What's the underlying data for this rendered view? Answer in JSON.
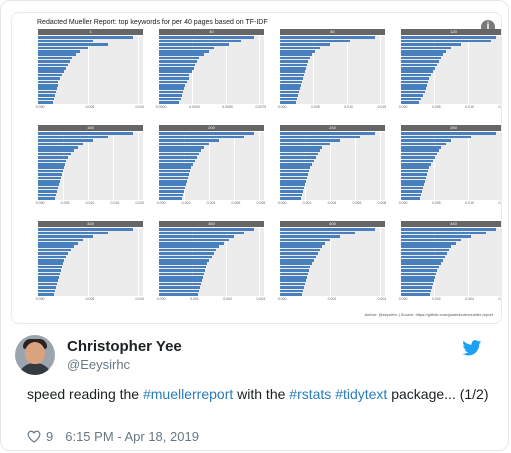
{
  "figure": {
    "title": "Redacted Mueller Report: top keywords for per 40 pages based on TF-IDF",
    "author_line": "Author: @eeysirhc | Source: https://github.com/gadenbuie/mueller-report",
    "info_icon": "info-icon",
    "panels": [
      {
        "strip": "1",
        "ticks": [
          "0.000",
          "0.005",
          "0.010"
        ],
        "values": [
          0.95,
          0.55,
          0.7,
          0.5,
          0.42,
          0.38,
          0.34,
          0.32,
          0.3,
          0.28,
          0.26,
          0.24,
          0.22,
          0.2,
          0.2,
          0.19,
          0.18,
          0.17,
          0.16,
          0.15
        ]
      },
      {
        "strip": "40",
        "ticks": [
          "0.0000",
          "0.0025",
          "0.0050",
          "0.0075"
        ],
        "values": [
          0.95,
          0.82,
          0.7,
          0.55,
          0.5,
          0.45,
          0.4,
          0.38,
          0.36,
          0.35,
          0.33,
          0.3,
          0.3,
          0.28,
          0.26,
          0.25,
          0.24,
          0.23,
          0.22,
          0.2
        ]
      },
      {
        "strip": "80",
        "ticks": [
          "0.000",
          "0.005",
          "0.010",
          "0.015"
        ],
        "values": [
          0.95,
          0.7,
          0.5,
          0.4,
          0.35,
          0.32,
          0.3,
          0.28,
          0.27,
          0.26,
          0.25,
          0.24,
          0.23,
          0.22,
          0.21,
          0.2,
          0.19,
          0.18,
          0.17,
          0.16
        ]
      },
      {
        "strip": "120",
        "ticks": [
          "0.000",
          "0.005",
          "0.010",
          "0.015"
        ],
        "values": [
          0.95,
          0.9,
          0.6,
          0.5,
          0.45,
          0.42,
          0.4,
          0.38,
          0.36,
          0.34,
          0.32,
          0.3,
          0.28,
          0.27,
          0.26,
          0.25,
          0.24,
          0.22,
          0.2,
          0.18
        ]
      },
      {
        "strip": "160",
        "ticks": [
          "0.000",
          "0.005",
          "0.010",
          "0.015",
          "0.020"
        ],
        "values": [
          0.95,
          0.7,
          0.55,
          0.45,
          0.4,
          0.36,
          0.33,
          0.3,
          0.28,
          0.27,
          0.26,
          0.25,
          0.24,
          0.23,
          0.22,
          0.21,
          0.2,
          0.19,
          0.18,
          0.17
        ]
      },
      {
        "strip": "200",
        "ticks": [
          "0.000",
          "0.002",
          "0.004",
          "0.006",
          "0.008"
        ],
        "values": [
          0.95,
          0.85,
          0.6,
          0.5,
          0.45,
          0.42,
          0.4,
          0.38,
          0.36,
          0.34,
          0.32,
          0.31,
          0.3,
          0.29,
          0.28,
          0.27,
          0.26,
          0.25,
          0.24,
          0.23
        ]
      },
      {
        "strip": "240",
        "ticks": [
          "0.000",
          "0.002",
          "0.004",
          "0.006",
          "0.008"
        ],
        "values": [
          0.95,
          0.8,
          0.6,
          0.5,
          0.42,
          0.4,
          0.38,
          0.36,
          0.34,
          0.32,
          0.3,
          0.29,
          0.28,
          0.27,
          0.26,
          0.25,
          0.24,
          0.23,
          0.22,
          0.21
        ]
      },
      {
        "strip": "280",
        "ticks": [
          "0.000",
          "0.005",
          "0.010",
          "0.015"
        ],
        "values": [
          0.95,
          0.7,
          0.5,
          0.45,
          0.4,
          0.38,
          0.36,
          0.34,
          0.32,
          0.3,
          0.28,
          0.27,
          0.26,
          0.25,
          0.24,
          0.23,
          0.22,
          0.21,
          0.2,
          0.19
        ]
      },
      {
        "strip": "320",
        "ticks": [
          "0.000",
          "0.005",
          "0.010"
        ],
        "values": [
          0.95,
          0.7,
          0.55,
          0.45,
          0.4,
          0.36,
          0.33,
          0.3,
          0.28,
          0.26,
          0.25,
          0.24,
          0.23,
          0.22,
          0.21,
          0.2,
          0.19,
          0.18,
          0.17,
          0.16
        ]
      },
      {
        "strip": "360",
        "ticks": [
          "0.000",
          "0.001",
          "0.002",
          "0.003"
        ],
        "values": [
          0.95,
          0.85,
          0.75,
          0.7,
          0.65,
          0.6,
          0.57,
          0.55,
          0.53,
          0.5,
          0.48,
          0.47,
          0.46,
          0.45,
          0.44,
          0.43,
          0.42,
          0.41,
          0.4,
          0.39
        ]
      },
      {
        "strip": "400",
        "ticks": [
          "0.000",
          "0.002",
          "0.004"
        ],
        "values": [
          0.95,
          0.75,
          0.6,
          0.5,
          0.45,
          0.42,
          0.4,
          0.38,
          0.36,
          0.34,
          0.32,
          0.3,
          0.29,
          0.28,
          0.27,
          0.26,
          0.25,
          0.24,
          0.23,
          0.22
        ]
      },
      {
        "strip": "440",
        "ticks": [
          "0.000",
          "0.002",
          "0.004",
          "0.006"
        ],
        "values": [
          0.95,
          0.85,
          0.7,
          0.6,
          0.55,
          0.5,
          0.48,
          0.46,
          0.44,
          0.42,
          0.4,
          0.38,
          0.36,
          0.35,
          0.34,
          0.33,
          0.32,
          0.31,
          0.3,
          0.29
        ]
      }
    ]
  },
  "author": {
    "name": "Christopher Yee",
    "handle": "@Eeysirhc"
  },
  "tweet": {
    "text_1": "speed reading the ",
    "hashtag_1": "#muellerreport",
    "text_2": " with the ",
    "hashtag_2": "#rstats",
    "text_3": " ",
    "hashtag_3": "#tidytext",
    "text_4": " package... (1/2)"
  },
  "meta": {
    "likes": "9",
    "timestamp": "6:15 PM - Apr 18, 2019"
  },
  "colors": {
    "accent": "#1da1f2",
    "hashtag": "#2b7bb9",
    "bar": "#4a7fbd"
  }
}
